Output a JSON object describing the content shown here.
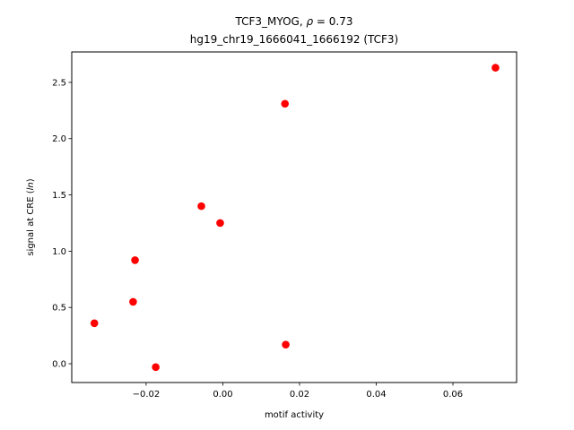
{
  "chart_data": {
    "type": "scatter",
    "title": {
      "line1_prefix": "TCF3_MYOG, ",
      "line1_rho": "ρ",
      "line1_suffix": " = 0.73",
      "line2": "hg19_chr19_1666041_1666192 (TCF3)"
    },
    "xlabel": "motif activity",
    "ylabel_prefix": "signal at CRE (",
    "ylabel_italic": "ln",
    "ylabel_suffix": ")",
    "xlim": [
      -0.0394,
      0.0766
    ],
    "ylim": [
      -0.167,
      2.77
    ],
    "xticks": [
      {
        "value": -0.02,
        "label": "−0.02"
      },
      {
        "value": 0.0,
        "label": "0.00"
      },
      {
        "value": 0.02,
        "label": "0.02"
      },
      {
        "value": 0.04,
        "label": "0.04"
      },
      {
        "value": 0.06,
        "label": "0.06"
      }
    ],
    "yticks": [
      {
        "value": 0.0,
        "label": "0.0"
      },
      {
        "value": 0.5,
        "label": "0.5"
      },
      {
        "value": 1.0,
        "label": "1.0"
      },
      {
        "value": 1.5,
        "label": "1.5"
      },
      {
        "value": 2.0,
        "label": "2.0"
      },
      {
        "value": 2.5,
        "label": "2.5"
      }
    ],
    "marker_color": "#ff0000",
    "points": [
      {
        "x": -0.0335,
        "y": 0.36
      },
      {
        "x": -0.0234,
        "y": 0.55
      },
      {
        "x": -0.0229,
        "y": 0.92
      },
      {
        "x": -0.0175,
        "y": -0.03
      },
      {
        "x": -0.0056,
        "y": 1.4
      },
      {
        "x": -0.0007,
        "y": 1.25
      },
      {
        "x": 0.0162,
        "y": 2.31
      },
      {
        "x": 0.0164,
        "y": 0.17
      },
      {
        "x": 0.0711,
        "y": 2.63
      }
    ],
    "grid": false,
    "legend": "none"
  }
}
